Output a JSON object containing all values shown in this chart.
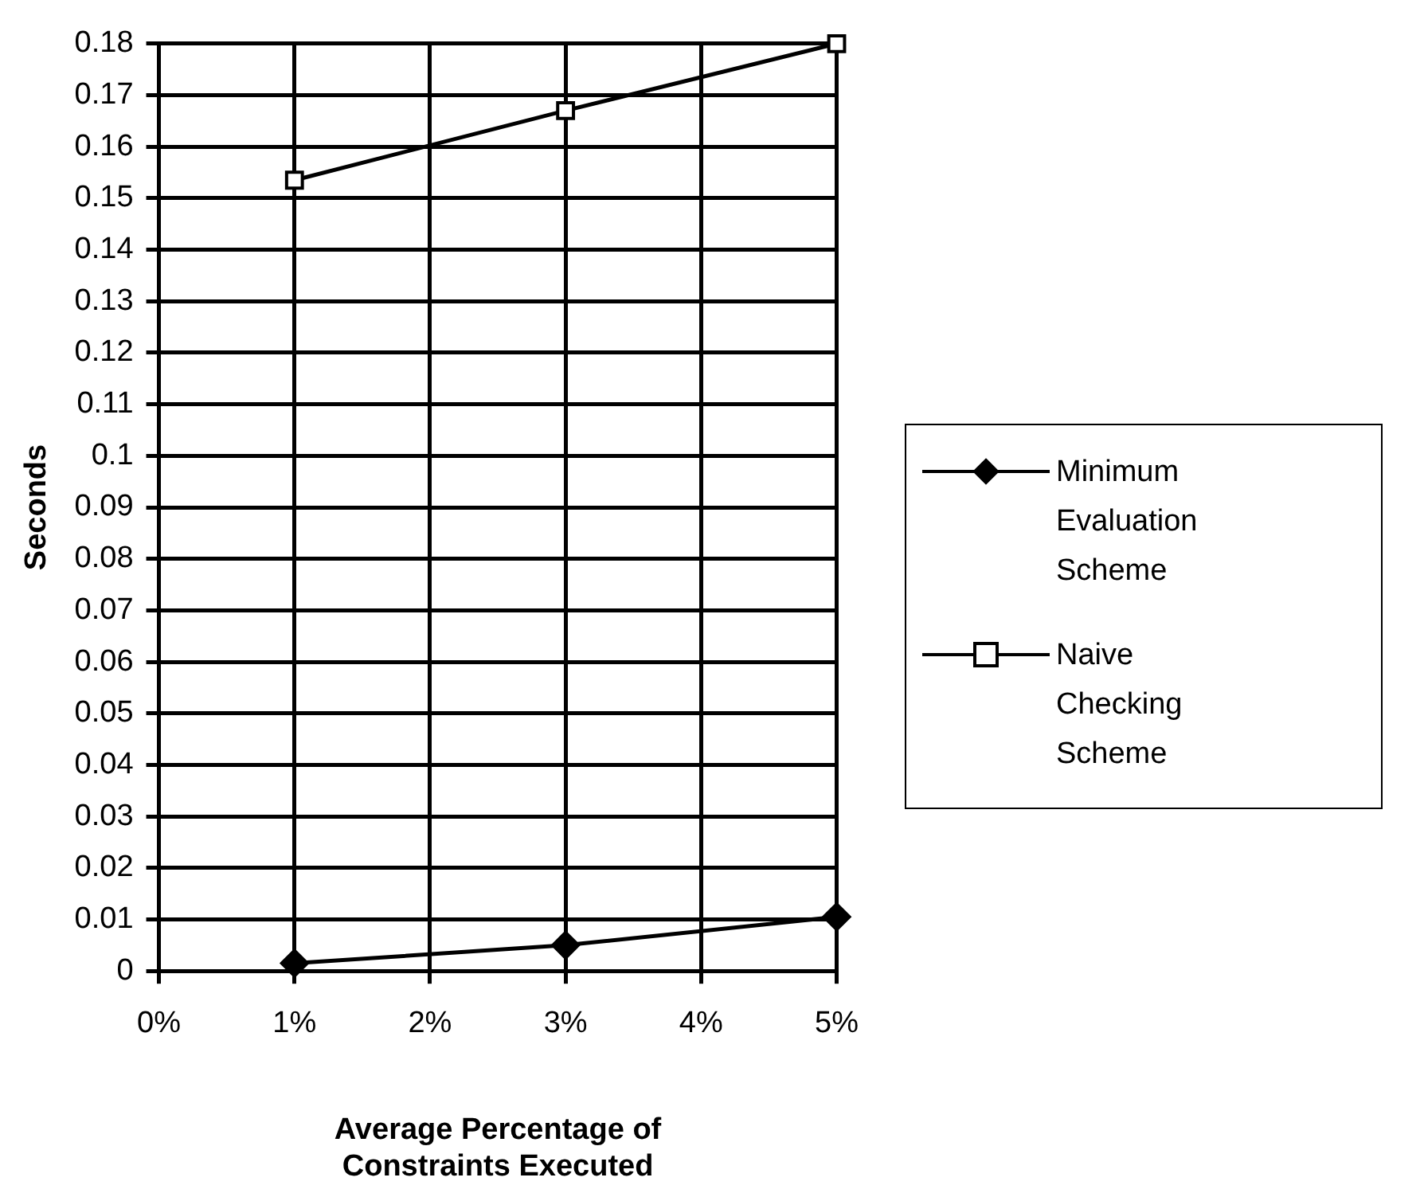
{
  "chart_data": {
    "type": "line",
    "xlabel": "Average Percentage of\nConstraints Executed",
    "ylabel": "Seconds",
    "xlim": [
      0,
      5
    ],
    "xticks": [
      {
        "value": 0,
        "label": "0%"
      },
      {
        "value": 1,
        "label": "1%"
      },
      {
        "value": 2,
        "label": "2%"
      },
      {
        "value": 3,
        "label": "3%"
      },
      {
        "value": 4,
        "label": "4%"
      },
      {
        "value": 5,
        "label": "5%"
      }
    ],
    "ylim": [
      0,
      0.18
    ],
    "yticks": [
      0,
      0.01,
      0.02,
      0.03,
      0.04,
      0.05,
      0.06,
      0.07,
      0.08,
      0.09,
      0.1,
      0.11,
      0.12,
      0.13,
      0.14,
      0.15,
      0.16,
      0.17,
      0.18
    ],
    "x": [
      1,
      3,
      5
    ],
    "grid": true,
    "legend": "right",
    "line_style": "solid",
    "series": [
      {
        "name": "Minimum Evaluation Scheme",
        "color": "#000000",
        "marker": "diamond",
        "values": [
          0.0015,
          0.005,
          0.0105
        ]
      },
      {
        "name": "Naive Checking Scheme",
        "color": "#000000",
        "marker": "square",
        "values": [
          0.1535,
          0.167,
          0.18
        ]
      }
    ]
  }
}
